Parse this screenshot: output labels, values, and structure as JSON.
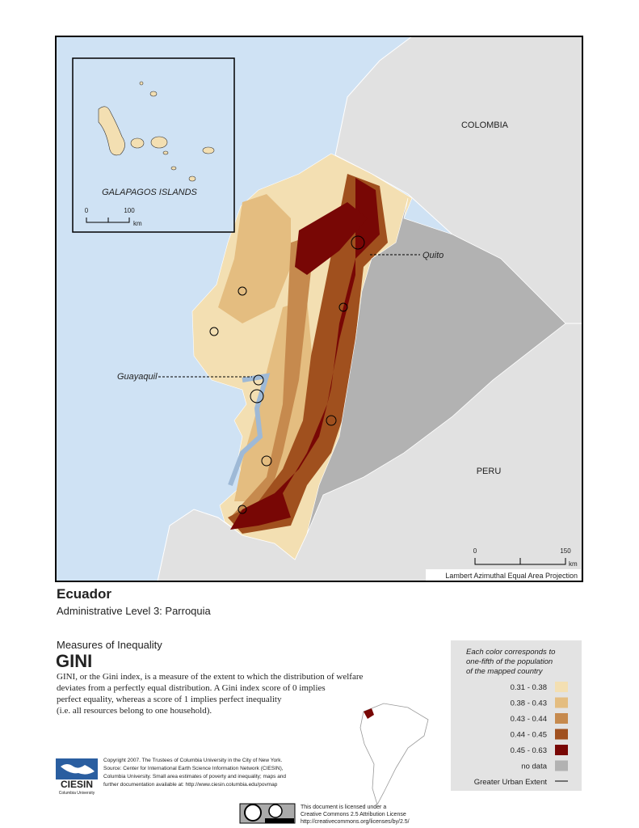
{
  "map": {
    "countries": [
      "COLOMBIA",
      "PERU"
    ],
    "inset": {
      "title": "GALAPAGOS ISLANDS",
      "scale": [
        "0",
        "100",
        "km"
      ]
    },
    "cities": [
      "Quito",
      "Guayaquil"
    ],
    "scale": [
      "0",
      "150",
      "km"
    ],
    "projection": "Lambert Azimuthal Equal Area Projection"
  },
  "header": {
    "title": "Ecuador",
    "subtitle": "Administrative Level 3: Parroquia"
  },
  "measure": {
    "group": "Measures of Inequality",
    "name": "GINI",
    "description": [
      "GINI, or the Gini index, is a measure of the extent to which the distribution of welfare",
      "deviates from a perfectly equal distribution. A Gini index score of 0 implies",
      "perfect equality, whereas a score of 1 implies perfect inequality",
      "(i.e. all resources belong to one household)."
    ]
  },
  "legend": {
    "note": [
      "Each color corresponds to",
      "one-fifth of the population",
      "of the mapped country"
    ],
    "items": [
      {
        "label": "0.31 - 0.38",
        "color": "#f3dfb2"
      },
      {
        "label": "0.38 - 0.43",
        "color": "#e4bd80"
      },
      {
        "label": "0.43 - 0.44",
        "color": "#c68a4e"
      },
      {
        "label": "0.44 - 0.45",
        "color": "#a0501e"
      },
      {
        "label": "0.45 - 0.63",
        "color": "#780705"
      },
      {
        "label": "no data",
        "color": "#b2b2b2"
      }
    ],
    "urban": "Greater Urban Extent"
  },
  "footer": {
    "copyright": [
      "Copyright 2007. The Trustees of Columbia University in the City of New York.",
      "Source: Center for International Earth Science Information Network (CIESIN),",
      "Columbia University. Small area estimates of poverty and inequality; maps and",
      "further documentation available at: http://www.ciesin.columbia.edu/povmap"
    ],
    "logo": [
      "CIESIN",
      "Columbia University"
    ],
    "license": [
      "This document is licensed under a",
      "Creative Commons 2.5 Attribution License",
      "http://creativecommons.org/licenses/by/2.5/"
    ]
  }
}
